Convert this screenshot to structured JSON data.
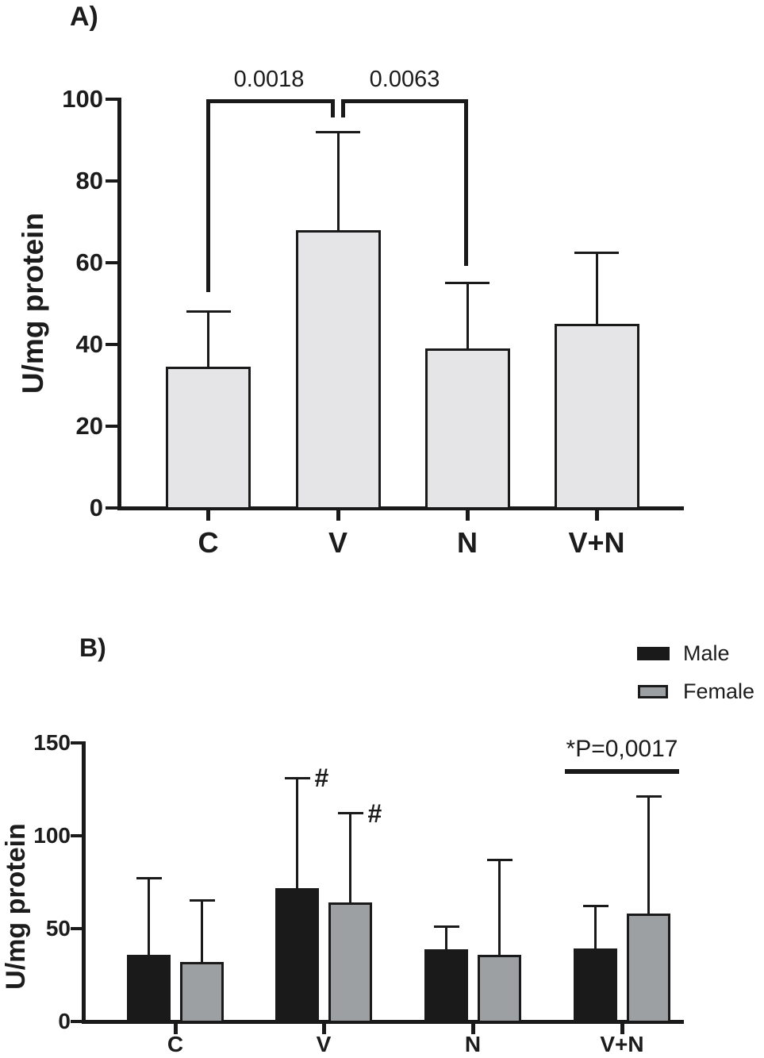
{
  "chart_data": [
    {
      "id": "A",
      "type": "bar",
      "panel_label": "A)",
      "ylabel": "U/mg protein",
      "ylim": [
        0,
        100
      ],
      "yticks": [
        0,
        20,
        40,
        60,
        80,
        100
      ],
      "categories": [
        "C",
        "V",
        "N",
        "V+N"
      ],
      "values": [
        34.5,
        68,
        39,
        45
      ],
      "error_tops": [
        48,
        92,
        55,
        62.5
      ],
      "bar_fill": "#e5e5e7",
      "bar_border": "#1a1a1a",
      "grid": "off",
      "significance_brackets": [
        {
          "label": "0.0018",
          "from": "C",
          "to": "V"
        },
        {
          "label": "0.0063",
          "from": "V",
          "to": "N"
        }
      ]
    },
    {
      "id": "B",
      "type": "grouped-bar",
      "panel_label": "B)",
      "ylabel": "U/mg protein",
      "ylim": [
        0,
        150
      ],
      "yticks": [
        0,
        50,
        100,
        150
      ],
      "categories": [
        "C",
        "V",
        "N",
        "V+N"
      ],
      "series": [
        {
          "name": "Male",
          "color": "#1a1a1a",
          "values": [
            36,
            72,
            39,
            39.5
          ],
          "error_tops": [
            77,
            131,
            51,
            62
          ]
        },
        {
          "name": "Female",
          "color": "#9da0a3",
          "values": [
            32,
            64,
            36,
            58
          ],
          "error_tops": [
            65,
            112,
            87,
            121
          ]
        }
      ],
      "legend_position": "top-right",
      "hash_annotations": [
        {
          "text": "#",
          "category": "V",
          "series": "Male"
        },
        {
          "text": "#",
          "category": "V",
          "series": "Female"
        }
      ],
      "significance": {
        "label": "*P=0,0017",
        "over_category": "V+N"
      }
    }
  ]
}
